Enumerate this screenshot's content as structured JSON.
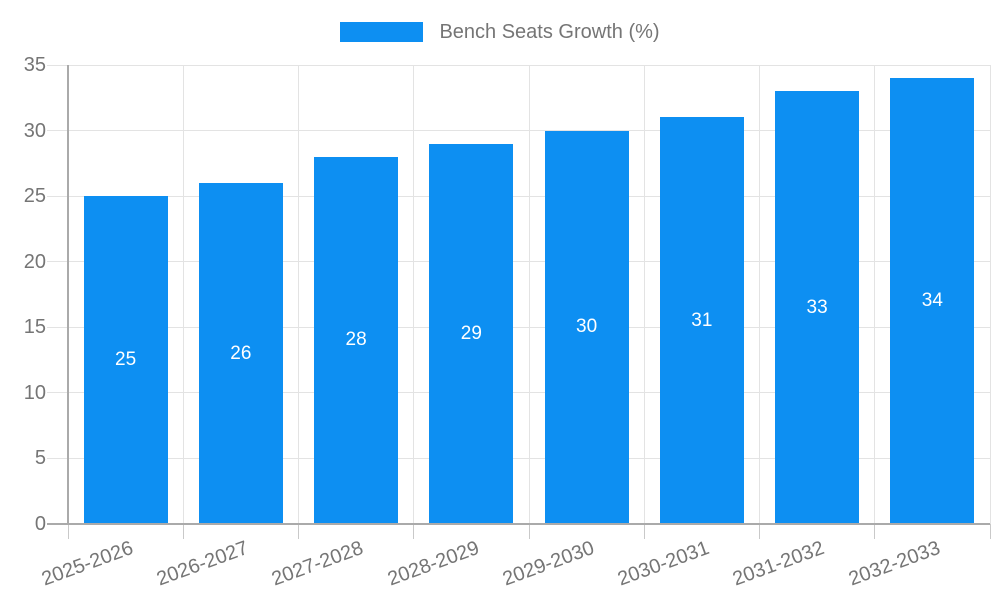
{
  "legend": {
    "items": [
      {
        "label": "Bench Seats Growth (%)",
        "color": "#0d8ff2"
      }
    ]
  },
  "chart_data": {
    "type": "bar",
    "title": "Bench Seats Growth (%)",
    "categories": [
      "2025-2026",
      "2026-2027",
      "2027-2028",
      "2028-2029",
      "2029-2030",
      "2030-2031",
      "2031-2032",
      "2032-2033"
    ],
    "values": [
      25,
      26,
      28,
      29,
      30,
      31,
      33,
      34
    ],
    "value_labels": [
      "25",
      "26",
      "28",
      "29",
      "30",
      "31",
      "33",
      "34"
    ],
    "yticks": [
      0,
      5,
      10,
      15,
      20,
      25,
      30,
      35
    ],
    "ytick_labels": [
      "0",
      "5",
      "10",
      "15",
      "20",
      "25",
      "30",
      "35"
    ],
    "ylim": [
      0,
      35
    ],
    "xlabel": "",
    "ylabel": "",
    "grid": true,
    "legend_position": "top-center",
    "colors": {
      "bar": "#0d8ff2",
      "value_label": "#ffffff",
      "axis_text": "#757575",
      "gridline": "#e3e3e3",
      "axis_line": "#aaaaaa",
      "tick": "#c9c9c9",
      "background": "#ffffff"
    }
  }
}
